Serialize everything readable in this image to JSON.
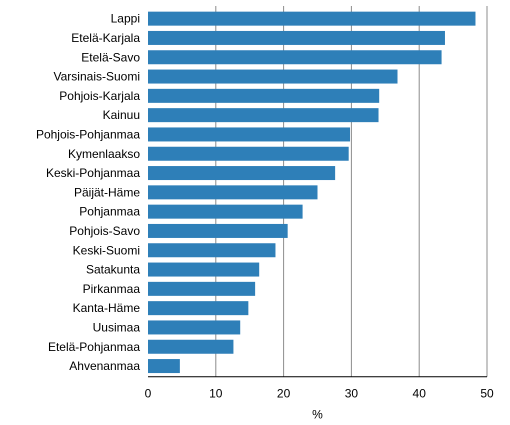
{
  "chart_data": {
    "type": "bar",
    "orientation": "horizontal",
    "categories": [
      "Lappi",
      "Etelä-Karjala",
      "Etelä-Savo",
      "Varsinais-Suomi",
      "Pohjois-Karjala",
      "Kainuu",
      "Pohjois-Pohjanmaa",
      "Kymenlaakso",
      "Keski-Pohjanmaa",
      "Päijät-Häme",
      "Pohjanmaa",
      "Pohjois-Savo",
      "Keski-Suomi",
      "Satakunta",
      "Pirkanmaa",
      "Kanta-Häme",
      "Uusimaa",
      "Etelä-Pohjanmaa",
      "Ahvenanmaa"
    ],
    "values": [
      48.3,
      43.8,
      43.3,
      36.8,
      34.1,
      34.0,
      29.8,
      29.6,
      27.6,
      25.0,
      22.8,
      20.6,
      18.8,
      16.4,
      15.8,
      14.8,
      13.6,
      12.6,
      4.7
    ],
    "xlabel": "%",
    "xlim": [
      0,
      50
    ],
    "xticks": [
      "0",
      "10",
      "20",
      "30",
      "40",
      "50"
    ],
    "grid": "vertical",
    "bar_color": "#2e7fb8",
    "grid_color": "#8c8c8c"
  }
}
